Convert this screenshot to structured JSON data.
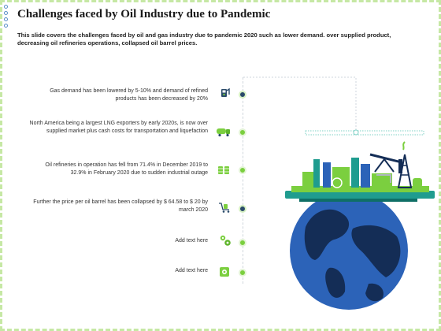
{
  "title": "Challenges faced by Oil Industry due to Pandemic",
  "subtitle": "This slide covers the challenges faced by oil and gas industry due to pandemic 2020 such as lower demand. over supplied product, decreasing oil refineries operations, collapsed oil barrel prices.",
  "items": [
    {
      "text": "Gas demand has been lowered by 5-10% and demand of refined products has been decreased by 20%",
      "icon": "gas-pump-icon"
    },
    {
      "text": "North America being a largest LNG exporters by early 2020s, is now over supplied market plus cash costs for transportation and liquefaction",
      "icon": "tanker-truck-icon"
    },
    {
      "text": "Oil refineries in operation has fell from 71.4% in December 2019 to 32.9% in February 2020 due to sudden industrial outage",
      "icon": "oil-barrels-icon"
    },
    {
      "text": "Further the price per oil barrel has been collapsed by $ 64.58 to $ 20 by march 2020",
      "icon": "cart-barrel-icon"
    },
    {
      "text": "Add text here",
      "icon": "gears-icon"
    },
    {
      "text": "Add text here",
      "icon": "gear-box-icon"
    }
  ],
  "colors": {
    "navy": "#2a4a6a",
    "green": "#7bcf3f",
    "teal": "#1f9c8f",
    "ocean": "#2c63b8",
    "land": "#142d56"
  }
}
